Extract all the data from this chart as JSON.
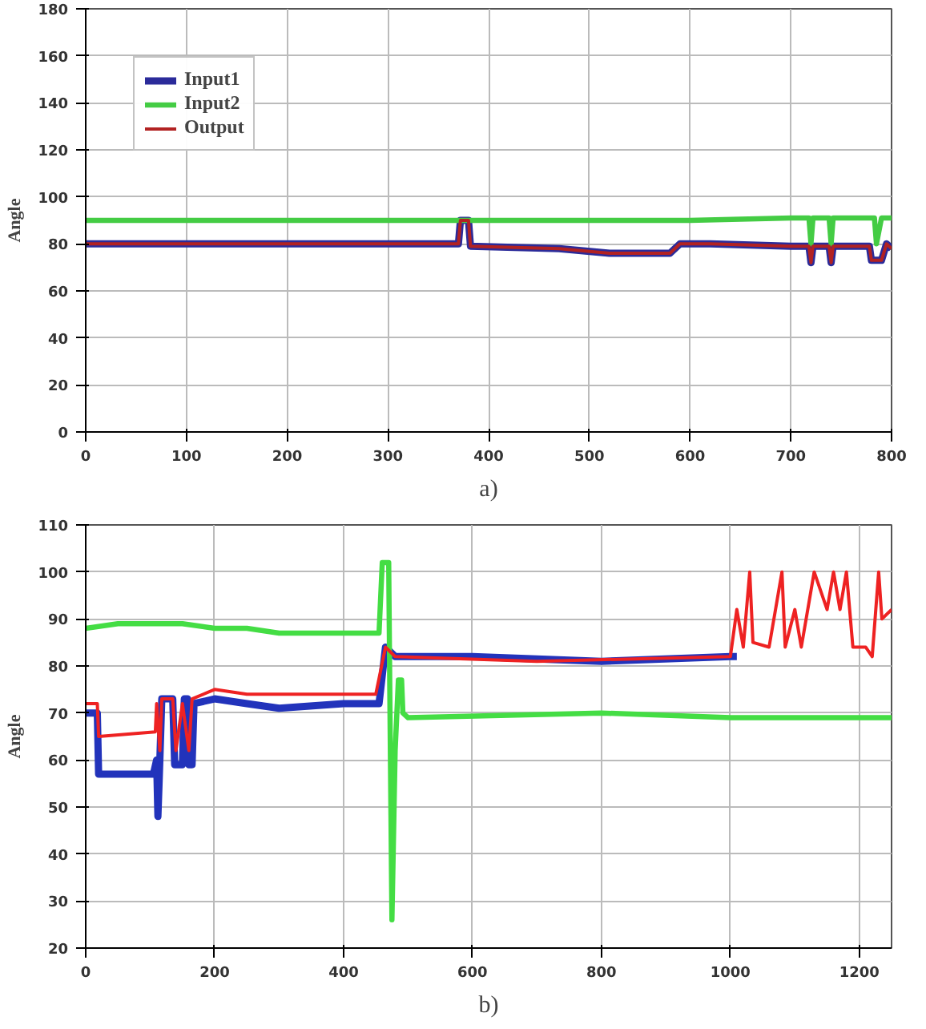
{
  "chart_data": [
    {
      "type": "line",
      "ylabel": "Angle",
      "xlim": [
        0,
        800
      ],
      "ylim": [
        0,
        180
      ],
      "xticks": [
        0,
        100,
        200,
        300,
        400,
        500,
        600,
        700,
        800
      ],
      "yticks": [
        0,
        20,
        40,
        60,
        80,
        100,
        120,
        140,
        160,
        180
      ],
      "grid": true,
      "legend": "top left",
      "annotations": [
        "a)"
      ],
      "series": [
        {
          "name": "Input1",
          "color": "#2b2b9a",
          "x": [
            0,
            370,
            372,
            380,
            382,
            470,
            520,
            580,
            590,
            620,
            700,
            718,
            720,
            722,
            738,
            740,
            742,
            778,
            780,
            790,
            795,
            800
          ],
          "values": [
            80,
            80,
            90,
            90,
            79,
            78,
            76,
            76,
            80,
            80,
            79,
            79,
            72,
            79,
            79,
            72,
            79,
            79,
            73,
            73,
            80,
            78
          ]
        },
        {
          "name": "Input2",
          "color": "#44cc44",
          "x": [
            0,
            300,
            600,
            700,
            718,
            720,
            722,
            738,
            740,
            742,
            783,
            785,
            790,
            800
          ],
          "values": [
            90,
            90,
            90,
            91,
            91,
            80,
            91,
            91,
            80,
            91,
            91,
            80,
            91,
            91
          ]
        },
        {
          "name": "Output",
          "color": "#b22222",
          "x": [
            0,
            370,
            372,
            380,
            382,
            470,
            520,
            580,
            590,
            620,
            700,
            718,
            720,
            722,
            738,
            740,
            742,
            778,
            780,
            790,
            795,
            800
          ],
          "values": [
            80,
            80,
            90,
            90,
            79,
            78,
            76,
            76,
            80,
            80,
            79,
            79,
            72,
            79,
            79,
            72,
            79,
            79,
            73,
            73,
            80,
            78
          ]
        }
      ]
    },
    {
      "type": "line",
      "ylabel": "Angle",
      "xlim": [
        0,
        1250
      ],
      "ylim": [
        20,
        110
      ],
      "xticks": [
        0,
        200,
        400,
        600,
        800,
        1000,
        1200
      ],
      "yticks": [
        20,
        30,
        40,
        50,
        60,
        70,
        80,
        90,
        100,
        110
      ],
      "grid": true,
      "annotations": [
        "b)"
      ],
      "series": [
        {
          "color": "#2233bb",
          "x": [
            0,
            18,
            20,
            105,
            110,
            112,
            115,
            118,
            135,
            138,
            150,
            153,
            158,
            160,
            165,
            168,
            200,
            250,
            300,
            400,
            455,
            465,
            480,
            600,
            800,
            1000,
            1010
          ],
          "values": [
            70,
            70,
            57,
            57,
            60,
            48,
            60,
            73,
            73,
            59,
            59,
            73,
            73,
            59,
            59,
            72,
            73,
            72,
            71,
            72,
            72,
            84,
            82,
            82,
            81,
            82,
            82
          ]
        },
        {
          "color": "#44dd44",
          "x": [
            0,
            50,
            100,
            150,
            200,
            250,
            300,
            455,
            460,
            470,
            472,
            475,
            480,
            485,
            490,
            492,
            500,
            800,
            1000,
            1250
          ],
          "values": [
            88,
            89,
            89,
            89,
            88,
            88,
            87,
            87,
            102,
            102,
            70,
            26,
            62,
            77,
            77,
            70,
            69,
            70,
            69,
            69
          ]
        },
        {
          "color": "#ee2222",
          "x": [
            0,
            18,
            20,
            108,
            110,
            115,
            118,
            135,
            140,
            150,
            160,
            165,
            200,
            250,
            450,
            465,
            480,
            700,
            1000,
            1010,
            1020,
            1030,
            1035,
            1060,
            1080,
            1085,
            1100,
            1110,
            1120,
            1130,
            1150,
            1160,
            1170,
            1180,
            1190,
            1210,
            1220,
            1230,
            1235,
            1250
          ],
          "values": [
            72,
            72,
            65,
            66,
            72,
            62,
            73,
            73,
            62,
            72,
            62,
            73,
            75,
            74,
            74,
            84,
            82,
            81,
            82,
            92,
            84,
            100,
            85,
            84,
            100,
            84,
            92,
            84,
            92,
            100,
            92,
            100,
            92,
            100,
            84,
            84,
            82,
            100,
            90,
            92
          ]
        }
      ]
    }
  ]
}
